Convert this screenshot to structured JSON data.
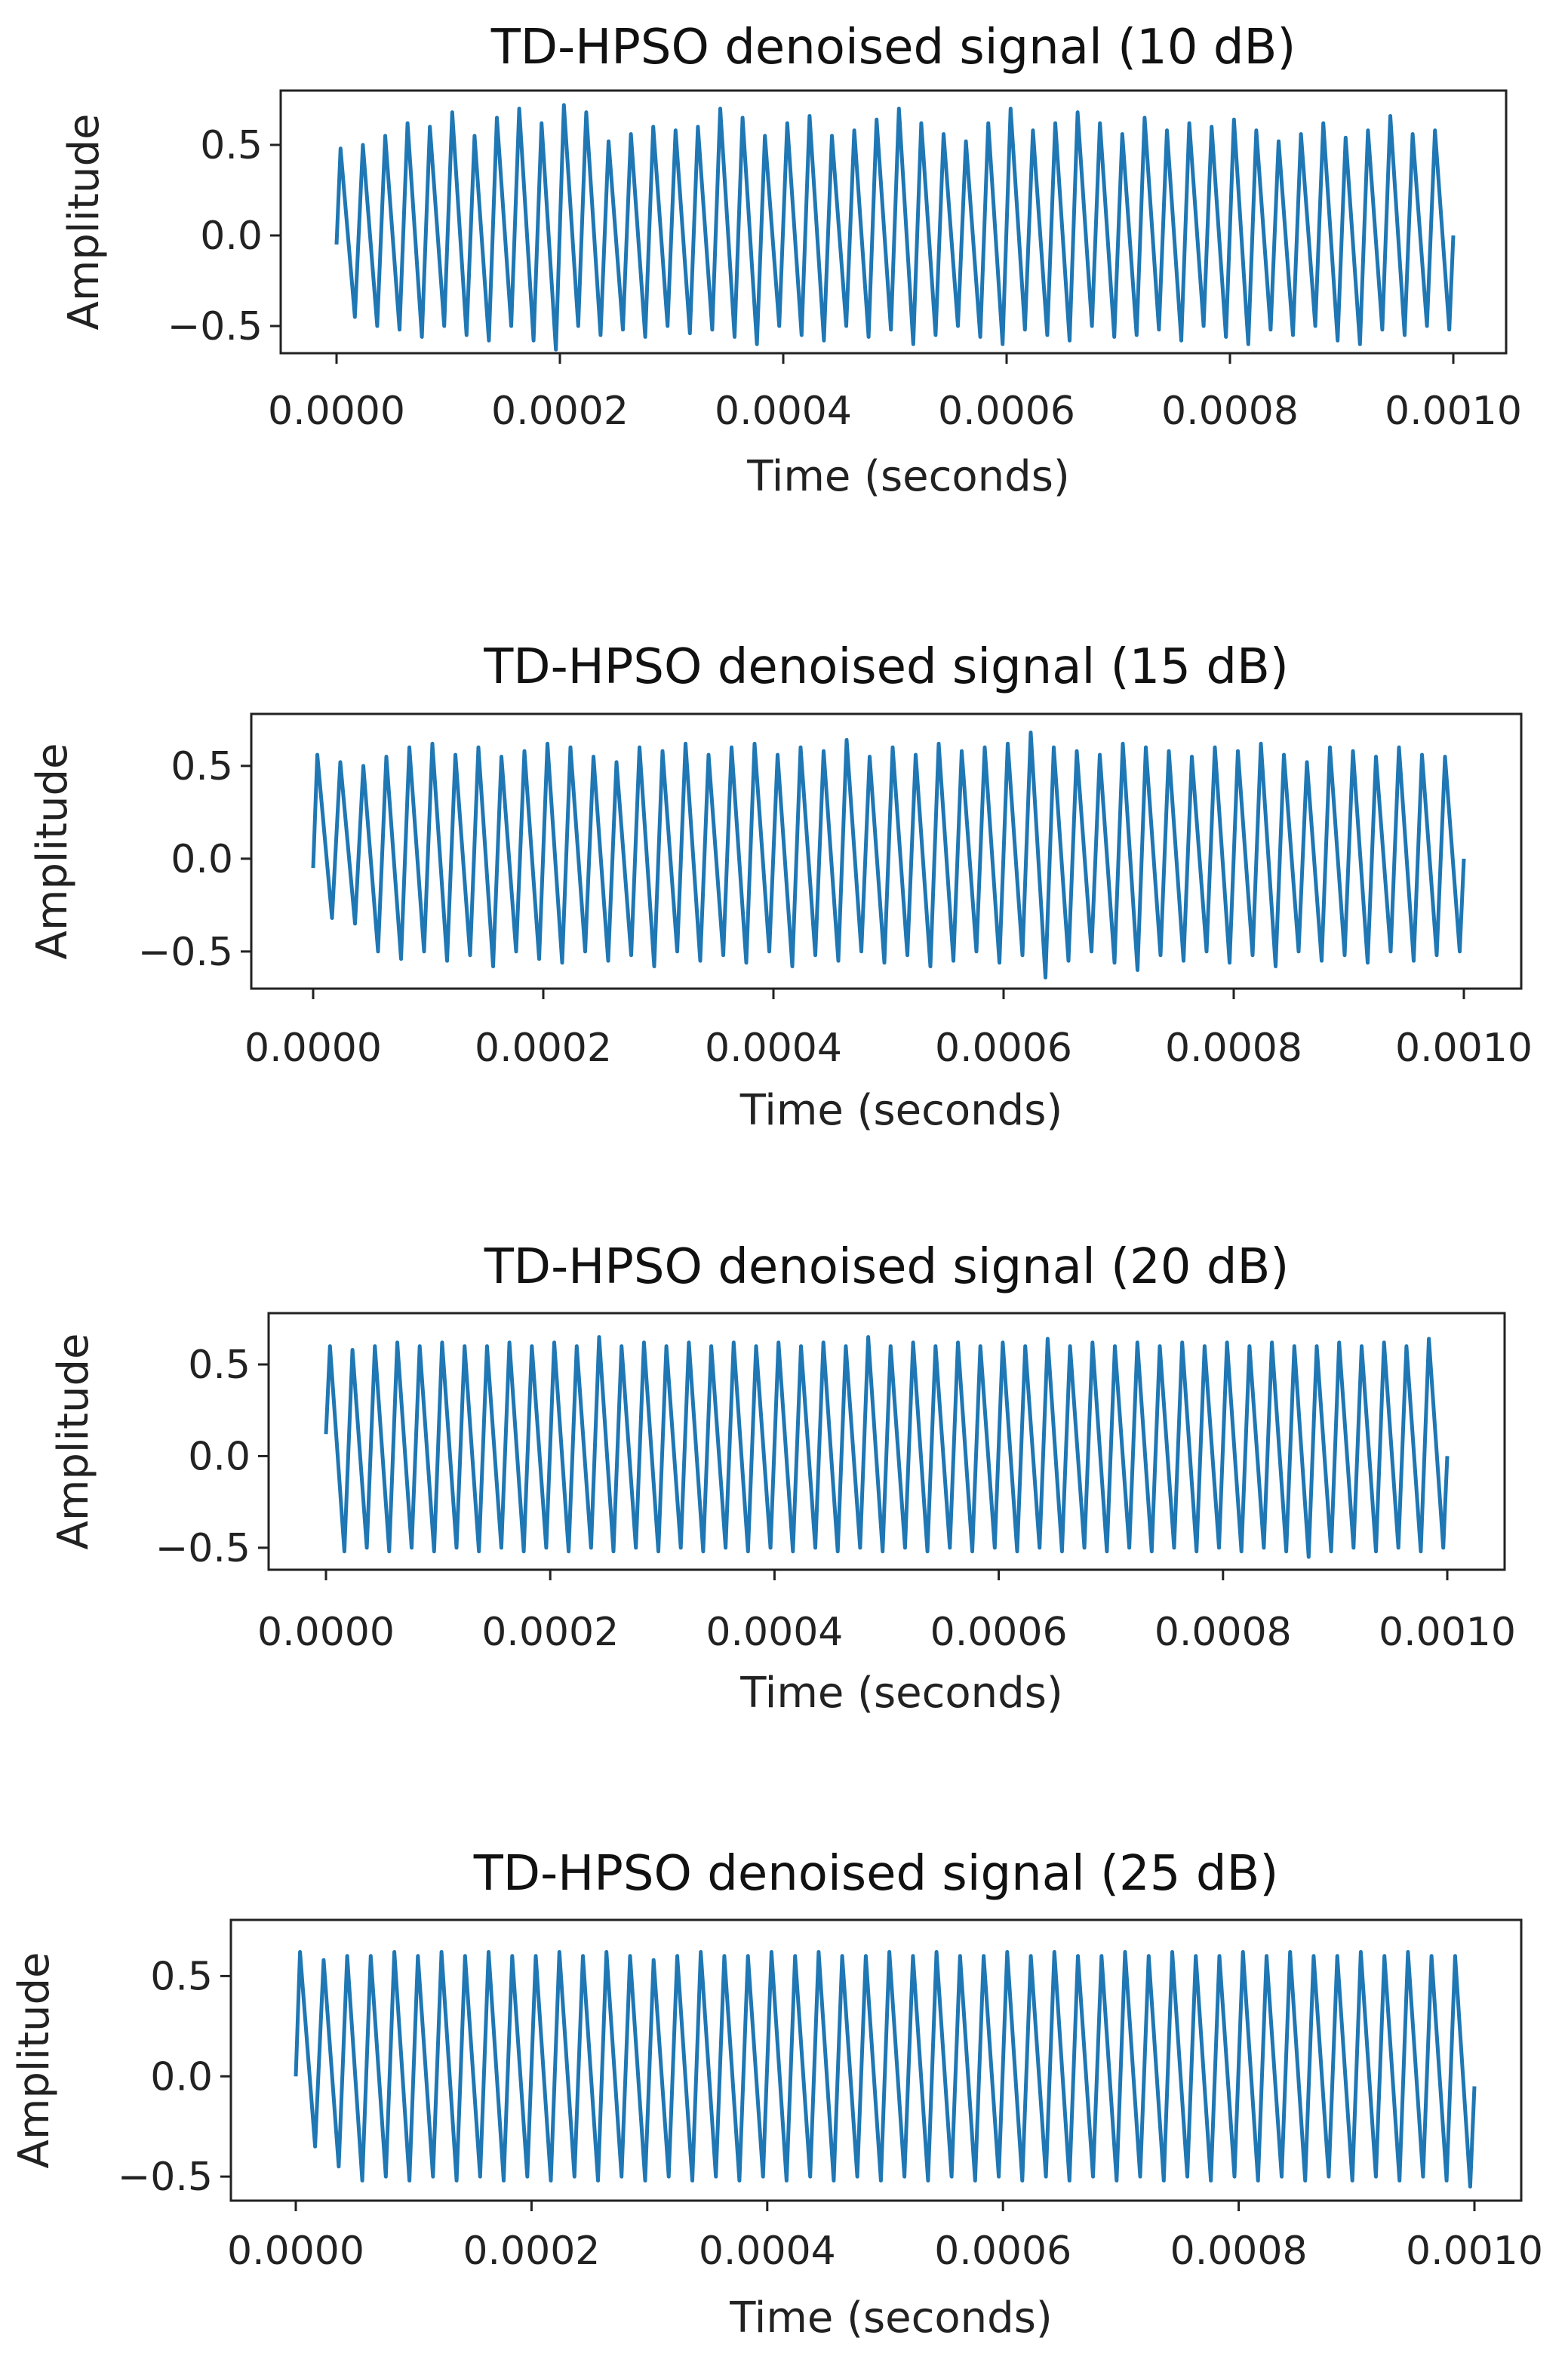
{
  "chart_data": [
    {
      "type": "line",
      "title": "TD-HPSO denoised signal (10 dB)",
      "xlabel": "Time (seconds)",
      "ylabel": "Amplitude",
      "xlim": [
        0,
        0.001
      ],
      "ylim": [
        -0.65,
        0.8
      ],
      "xticks": [
        "0.0000",
        "0.0002",
        "0.0004",
        "0.0006",
        "0.0008",
        "0.0010"
      ],
      "yticks": [
        "0.5",
        "0.0",
        "−0.5"
      ],
      "series": [
        {
          "cycles": 50,
          "start_value": -0.05,
          "end_value": 0.0,
          "peaks": [
            0.48,
            0.5,
            0.55,
            0.62,
            0.6,
            0.68,
            0.55,
            0.65,
            0.7,
            0.62,
            0.72,
            0.68,
            0.52,
            0.56,
            0.6,
            0.58,
            0.6,
            0.7,
            0.65,
            0.55,
            0.62,
            0.66,
            0.55,
            0.58,
            0.64,
            0.7,
            0.62,
            0.56,
            0.52,
            0.62,
            0.7,
            0.58,
            0.62,
            0.68,
            0.62,
            0.56,
            0.65,
            0.58,
            0.62,
            0.6,
            0.64,
            0.58,
            0.52,
            0.56,
            0.62,
            0.54,
            0.58,
            0.66,
            0.56,
            0.58
          ],
          "troughs": [
            -0.45,
            -0.5,
            -0.52,
            -0.56,
            -0.5,
            -0.55,
            -0.58,
            -0.5,
            -0.58,
            -0.63,
            -0.5,
            -0.55,
            -0.52,
            -0.56,
            -0.5,
            -0.54,
            -0.52,
            -0.56,
            -0.6,
            -0.5,
            -0.55,
            -0.58,
            -0.5,
            -0.56,
            -0.52,
            -0.6,
            -0.55,
            -0.5,
            -0.56,
            -0.6,
            -0.52,
            -0.55,
            -0.58,
            -0.5,
            -0.56,
            -0.55,
            -0.52,
            -0.58,
            -0.5,
            -0.56,
            -0.6,
            -0.52,
            -0.55,
            -0.5,
            -0.58,
            -0.6,
            -0.52,
            -0.55,
            -0.5,
            -0.52
          ]
        }
      ]
    },
    {
      "type": "line",
      "title": "TD-HPSO denoised signal (15 dB)",
      "xlabel": "Time (seconds)",
      "ylabel": "Amplitude",
      "xlim": [
        0,
        0.001
      ],
      "ylim": [
        -0.7,
        0.78
      ],
      "xticks": [
        "0.0000",
        "0.0002",
        "0.0004",
        "0.0006",
        "0.0008",
        "0.0010"
      ],
      "yticks": [
        "0.5",
        "0.0",
        "−0.5"
      ],
      "series": [
        {
          "cycles": 50,
          "start_value": -0.05,
          "end_value": 0.0,
          "peaks": [
            0.56,
            0.52,
            0.5,
            0.55,
            0.6,
            0.62,
            0.56,
            0.6,
            0.55,
            0.58,
            0.62,
            0.6,
            0.55,
            0.52,
            0.6,
            0.58,
            0.62,
            0.56,
            0.6,
            0.62,
            0.56,
            0.6,
            0.58,
            0.64,
            0.55,
            0.6,
            0.56,
            0.62,
            0.58,
            0.6,
            0.62,
            0.68,
            0.6,
            0.58,
            0.56,
            0.62,
            0.6,
            0.58,
            0.55,
            0.6,
            0.58,
            0.62,
            0.56,
            0.52,
            0.6,
            0.58,
            0.55,
            0.6,
            0.56,
            0.55
          ],
          "troughs": [
            -0.32,
            -0.35,
            -0.5,
            -0.54,
            -0.5,
            -0.55,
            -0.52,
            -0.58,
            -0.5,
            -0.54,
            -0.56,
            -0.5,
            -0.55,
            -0.52,
            -0.58,
            -0.5,
            -0.55,
            -0.52,
            -0.56,
            -0.5,
            -0.58,
            -0.52,
            -0.55,
            -0.5,
            -0.56,
            -0.52,
            -0.58,
            -0.55,
            -0.5,
            -0.56,
            -0.52,
            -0.64,
            -0.55,
            -0.5,
            -0.56,
            -0.6,
            -0.52,
            -0.55,
            -0.5,
            -0.56,
            -0.52,
            -0.58,
            -0.5,
            -0.55,
            -0.52,
            -0.56,
            -0.5,
            -0.55,
            -0.52,
            -0.5
          ]
        }
      ]
    },
    {
      "type": "line",
      "title": "TD-HPSO denoised signal (20 dB)",
      "xlabel": "Time (seconds)",
      "ylabel": "Amplitude",
      "xlim": [
        0,
        0.001
      ],
      "ylim": [
        -0.62,
        0.78
      ],
      "xticks": [
        "0.0000",
        "0.0002",
        "0.0004",
        "0.0006",
        "0.0008",
        "0.0010"
      ],
      "yticks": [
        "0.5",
        "0.0",
        "−0.5"
      ],
      "series": [
        {
          "cycles": 50,
          "start_value": 0.12,
          "end_value": 0.0,
          "peaks": [
            0.6,
            0.58,
            0.6,
            0.62,
            0.6,
            0.62,
            0.6,
            0.6,
            0.62,
            0.6,
            0.62,
            0.6,
            0.65,
            0.6,
            0.62,
            0.6,
            0.62,
            0.6,
            0.62,
            0.6,
            0.62,
            0.6,
            0.62,
            0.6,
            0.65,
            0.6,
            0.62,
            0.6,
            0.62,
            0.6,
            0.62,
            0.6,
            0.64,
            0.6,
            0.62,
            0.6,
            0.62,
            0.6,
            0.62,
            0.6,
            0.62,
            0.6,
            0.62,
            0.6,
            0.6,
            0.62,
            0.6,
            0.62,
            0.6,
            0.64
          ],
          "troughs": [
            -0.52,
            -0.5,
            -0.52,
            -0.5,
            -0.52,
            -0.5,
            -0.52,
            -0.5,
            -0.52,
            -0.5,
            -0.52,
            -0.5,
            -0.52,
            -0.5,
            -0.52,
            -0.5,
            -0.52,
            -0.5,
            -0.52,
            -0.5,
            -0.52,
            -0.5,
            -0.52,
            -0.5,
            -0.52,
            -0.5,
            -0.52,
            -0.5,
            -0.52,
            -0.5,
            -0.52,
            -0.5,
            -0.52,
            -0.5,
            -0.52,
            -0.5,
            -0.52,
            -0.5,
            -0.52,
            -0.5,
            -0.52,
            -0.5,
            -0.52,
            -0.55,
            -0.52,
            -0.5,
            -0.52,
            -0.5,
            -0.52,
            -0.5
          ]
        }
      ]
    },
    {
      "type": "line",
      "title": "TD-HPSO denoised signal (25 dB)",
      "xlabel": "Time (seconds)",
      "ylabel": "Amplitude",
      "xlim": [
        0,
        0.001
      ],
      "ylim": [
        -0.62,
        0.78
      ],
      "xticks": [
        "0.0000",
        "0.0002",
        "0.0004",
        "0.0006",
        "0.0008",
        "0.0010"
      ],
      "yticks": [
        "0.5",
        "0.0",
        "−0.5"
      ],
      "series": [
        {
          "cycles": 50,
          "start_value": 0.0,
          "end_value": -0.05,
          "peaks": [
            0.62,
            0.58,
            0.6,
            0.6,
            0.62,
            0.6,
            0.62,
            0.6,
            0.62,
            0.6,
            0.6,
            0.62,
            0.6,
            0.62,
            0.6,
            0.58,
            0.6,
            0.62,
            0.6,
            0.6,
            0.62,
            0.6,
            0.62,
            0.6,
            0.6,
            0.62,
            0.6,
            0.62,
            0.6,
            0.6,
            0.62,
            0.6,
            0.62,
            0.6,
            0.6,
            0.62,
            0.6,
            0.62,
            0.6,
            0.6,
            0.62,
            0.6,
            0.62,
            0.6,
            0.6,
            0.62,
            0.6,
            0.62,
            0.6,
            0.6
          ],
          "troughs": [
            -0.35,
            -0.45,
            -0.52,
            -0.5,
            -0.52,
            -0.5,
            -0.52,
            -0.5,
            -0.52,
            -0.5,
            -0.52,
            -0.5,
            -0.52,
            -0.5,
            -0.52,
            -0.5,
            -0.52,
            -0.5,
            -0.52,
            -0.5,
            -0.52,
            -0.5,
            -0.52,
            -0.5,
            -0.52,
            -0.5,
            -0.52,
            -0.5,
            -0.52,
            -0.5,
            -0.52,
            -0.5,
            -0.52,
            -0.5,
            -0.52,
            -0.5,
            -0.52,
            -0.5,
            -0.52,
            -0.5,
            -0.52,
            -0.5,
            -0.52,
            -0.5,
            -0.52,
            -0.5,
            -0.52,
            -0.5,
            -0.52,
            -0.55
          ]
        }
      ]
    }
  ],
  "colors": {
    "signal": "#1f77b4",
    "frame": "#222222",
    "background": "#ffffff"
  }
}
